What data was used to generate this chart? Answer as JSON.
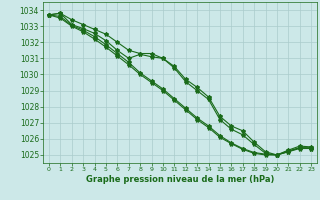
{
  "background_color": "#cce8e8",
  "grid_color": "#aacccc",
  "line_color": "#1a6b1a",
  "marker_color": "#1a6b1a",
  "text_color": "#1a6b1a",
  "xlabel": "Graphe pression niveau de la mer (hPa)",
  "xlim": [
    -0.5,
    23.5
  ],
  "ylim": [
    1024.5,
    1034.5
  ],
  "yticks": [
    1025,
    1026,
    1027,
    1028,
    1029,
    1030,
    1031,
    1032,
    1033,
    1034
  ],
  "xticks": [
    0,
    1,
    2,
    3,
    4,
    5,
    6,
    7,
    8,
    9,
    10,
    11,
    12,
    13,
    14,
    15,
    16,
    17,
    18,
    19,
    20,
    21,
    22,
    23
  ],
  "line1": [
    1033.7,
    1033.8,
    1033.4,
    1033.1,
    1032.8,
    1032.5,
    1032.0,
    1031.5,
    1031.3,
    1031.3,
    1031.0,
    1030.5,
    1029.7,
    1029.2,
    1028.6,
    1027.4,
    1026.8,
    1026.5,
    1025.8,
    1025.2,
    1025.0,
    1025.3,
    1025.55,
    1025.5
  ],
  "line2": [
    1033.7,
    1033.8,
    1033.1,
    1032.85,
    1032.55,
    1032.1,
    1031.5,
    1031.0,
    1031.25,
    1031.1,
    1031.0,
    1030.4,
    1029.55,
    1029.0,
    1028.45,
    1027.2,
    1026.6,
    1026.25,
    1025.65,
    1025.1,
    1025.0,
    1025.2,
    1025.45,
    1025.4
  ],
  "line3": [
    1033.7,
    1033.5,
    1033.0,
    1032.65,
    1032.2,
    1031.7,
    1031.15,
    1030.6,
    1030.0,
    1029.5,
    1029.0,
    1028.4,
    1027.8,
    1027.2,
    1026.7,
    1026.1,
    1025.7,
    1025.35,
    1025.1,
    1025.0,
    1025.0,
    1025.25,
    1025.45,
    1025.45
  ],
  "line4": [
    1033.7,
    1033.6,
    1033.05,
    1032.75,
    1032.35,
    1031.85,
    1031.3,
    1030.75,
    1030.1,
    1029.6,
    1029.1,
    1028.5,
    1027.9,
    1027.3,
    1026.8,
    1026.2,
    1025.75,
    1025.4,
    1025.15,
    1025.05,
    1025.0,
    1025.2,
    1025.4,
    1025.4
  ]
}
